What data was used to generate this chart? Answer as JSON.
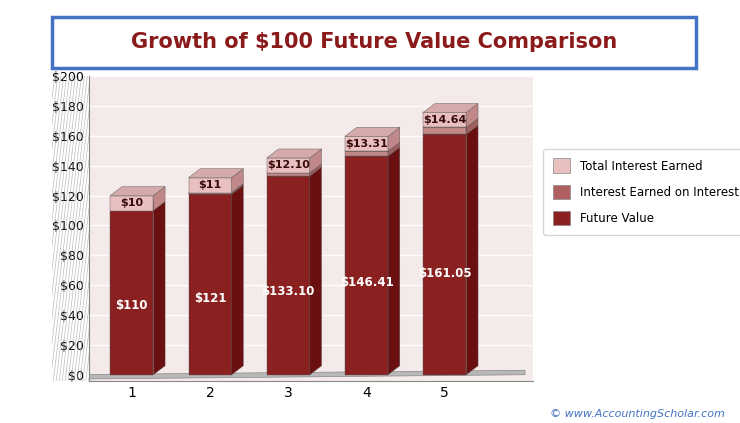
{
  "title": "Growth of $100 Future Value Comparison",
  "years": [
    1,
    2,
    3,
    4,
    5
  ],
  "future_value": [
    110,
    121,
    133.1,
    146.41,
    161.05
  ],
  "interest_on_interest": [
    0,
    1,
    2.1,
    3.31,
    4.64
  ],
  "total_interest": [
    10,
    11,
    12.1,
    13.31,
    14.64
  ],
  "fv_labels": [
    "$110",
    "$121",
    "$133.10",
    "$146.41",
    "$161.05"
  ],
  "int_labels": [
    "$10",
    "$11",
    "$12.10",
    "$13.31",
    "$14.64"
  ],
  "color_future_value": "#8B2020",
  "color_future_value_side": "#6B1515",
  "color_interest_on_interest": "#B06060",
  "color_total_interest": "#E8C0C0",
  "color_total_interest_top": "#D4A0A0",
  "color_background_plot": "#F5EAEA",
  "color_background_fig": "#FFFFFF",
  "color_left_wall": "#C0C0C0",
  "color_floor": "#C0C0C0",
  "color_title_text": "#8B1A1A",
  "color_title_border": "#4472C4",
  "ylim": [
    0,
    200
  ],
  "yticks": [
    0,
    20,
    40,
    60,
    80,
    100,
    120,
    140,
    160,
    180,
    200
  ],
  "ytick_labels": [
    "$0",
    "$20",
    "$40",
    "$60",
    "$80",
    "$100",
    "$120",
    "$140",
    "$160",
    "$180",
    "$200"
  ],
  "legend_labels": [
    "Total Interest Earned",
    "Interest Earned on Interest",
    "Future Value"
  ],
  "watermark": "© www.AccountingScholar.com",
  "bar_width": 0.55,
  "depth": 0.18
}
